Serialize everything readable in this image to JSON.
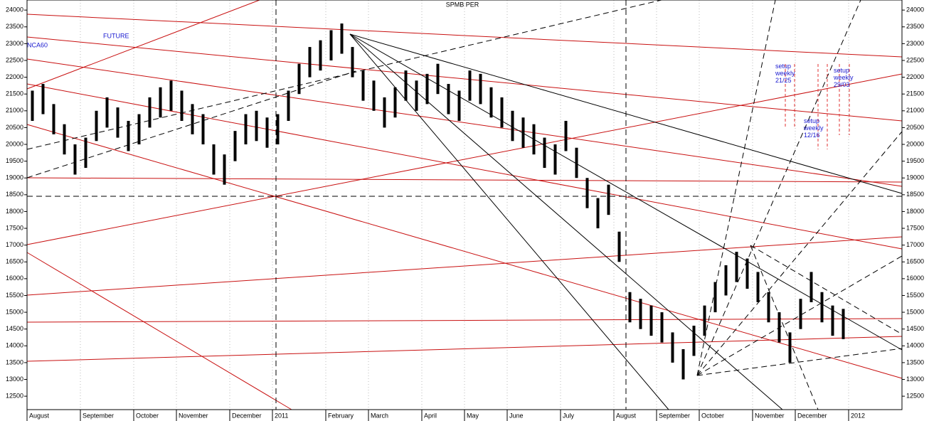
{
  "chart_data": {
    "type": "ohlc",
    "title": "SPMB PER",
    "annotations": [
      "FUTURE",
      "NCA60",
      "setup weekly 21/25",
      "setup weekly 12/16",
      "setup weekly 29/03"
    ],
    "categories": [
      "August",
      null,
      null,
      null,
      null,
      "September",
      null,
      null,
      null,
      null,
      "October",
      null,
      null,
      null,
      "November",
      null,
      null,
      null,
      null,
      "December",
      null,
      null,
      null,
      "2011",
      null,
      null,
      null,
      null,
      "February",
      null,
      null,
      null,
      "March",
      null,
      null,
      null,
      null,
      "April",
      null,
      null,
      null,
      "May",
      null,
      null,
      null,
      "June",
      null,
      null,
      null,
      null,
      "July",
      null,
      null,
      null,
      null,
      "August",
      null,
      null,
      null,
      "September",
      null,
      null,
      null,
      "October",
      null,
      null,
      null,
      null,
      "November",
      null,
      null,
      null,
      "December",
      null,
      null,
      null,
      null,
      "2012",
      null,
      null,
      null,
      null
    ],
    "series": [
      {
        "name": "high",
        "color": "#000000",
        "values": [
          21600,
          21800,
          21200,
          20600,
          20000,
          20200,
          21000,
          21400,
          21100,
          20700,
          20900,
          21400,
          21700,
          21900,
          21600,
          21200,
          20900,
          20000,
          19700,
          20400,
          20900,
          21000,
          20800,
          20900,
          21600,
          22400,
          22900,
          23100,
          23400,
          23600,
          22900,
          22200,
          21900,
          21400,
          21700,
          22200,
          21900,
          22100,
          22400,
          21800,
          21600,
          22200,
          22100,
          21700,
          21400,
          21000,
          20800,
          20600,
          20200,
          20000,
          20700,
          19900,
          19000,
          18400,
          18800,
          17400,
          15600,
          15400,
          15200,
          15000,
          14400,
          13900,
          14600,
          15200,
          15900,
          16400,
          16800,
          16600,
          16200,
          15600,
          15000,
          14400,
          15400,
          16200,
          15600,
          15200,
          15100,
          null,
          null,
          null,
          null,
          null
        ]
      },
      {
        "name": "low",
        "color": "#000000",
        "values": [
          20700,
          20900,
          20300,
          19700,
          19100,
          19300,
          20100,
          20500,
          20200,
          19800,
          20000,
          20500,
          20800,
          21000,
          20700,
          20300,
          20000,
          19100,
          18800,
          19500,
          20000,
          20100,
          19900,
          20000,
          20700,
          21500,
          22000,
          22200,
          22500,
          22700,
          22000,
          21300,
          21000,
          20500,
          20800,
          21300,
          21000,
          21200,
          21500,
          20900,
          20700,
          21300,
          21200,
          20800,
          20500,
          20100,
          19900,
          19700,
          19300,
          19100,
          19800,
          19000,
          18100,
          17500,
          17900,
          16500,
          14700,
          14500,
          14300,
          14100,
          13500,
          13000,
          13700,
          14300,
          15000,
          15500,
          15900,
          15700,
          15300,
          14700,
          14100,
          13500,
          14500,
          15300,
          14700,
          14300,
          14200,
          null,
          null,
          null,
          null,
          null
        ]
      }
    ],
    "ylim": [
      12100,
      24300
    ],
    "yticks": [
      12500,
      13000,
      13500,
      14000,
      14500,
      15000,
      15500,
      16000,
      16500,
      17000,
      17500,
      18000,
      18500,
      19000,
      19500,
      20000,
      20500,
      21000,
      21500,
      22000,
      22500,
      23000,
      23500,
      24000
    ]
  }
}
